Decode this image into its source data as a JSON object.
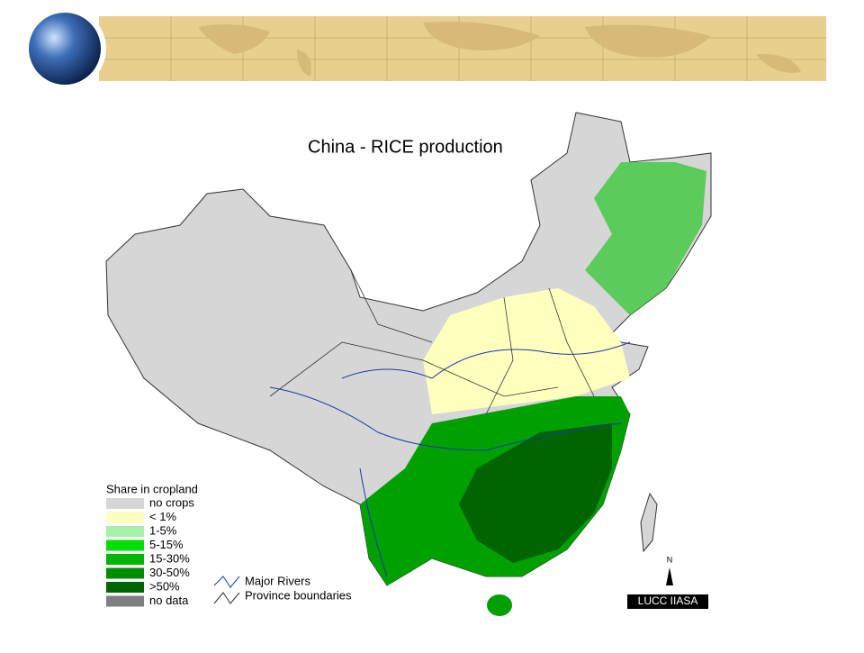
{
  "map": {
    "title": "China - RICE production",
    "legend": {
      "title": "Share in cropland",
      "items": [
        {
          "label": "no crops",
          "color": "#d6d6d6"
        },
        {
          "label": "< 1%",
          "color": "#ffffbe"
        },
        {
          "label": "1-5%",
          "color": "#a8f0a8"
        },
        {
          "label": "5-15%",
          "color": "#00e000"
        },
        {
          "label": "15-30%",
          "color": "#00b400"
        },
        {
          "label": "30-50%",
          "color": "#008c00"
        },
        {
          "label": ">50%",
          "color": "#006400"
        },
        {
          "label": "no data",
          "color": "#808080"
        }
      ]
    },
    "lines_legend": [
      "Major Rivers",
      "Province boundaries"
    ],
    "north_label": "N",
    "credit": "LUCC IIASA"
  }
}
